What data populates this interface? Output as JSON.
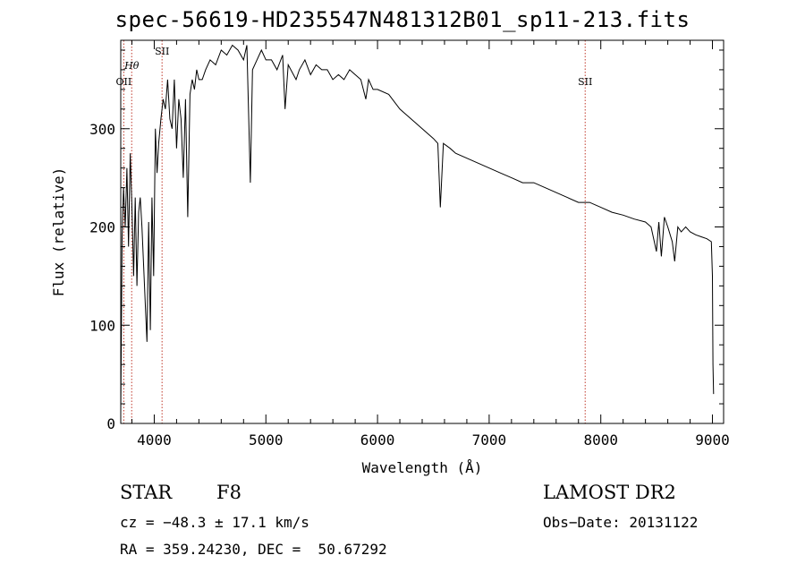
{
  "chart_data": {
    "type": "line",
    "title": "spec-56619-HD235547N481312B01_sp11-213.fits",
    "xlabel": "Wavelength (Å)",
    "ylabel": "Flux (relative)",
    "xlim": [
      3700,
      9100
    ],
    "ylim": [
      0,
      390
    ],
    "x_ticks": [
      4000,
      5000,
      6000,
      7000,
      8000,
      9000
    ],
    "y_ticks": [
      0,
      100,
      200,
      300
    ],
    "grid": false,
    "line_markers": [
      {
        "label": "OII",
        "wavelength": 3727,
        "label_row": "lower"
      },
      {
        "label": "Hθ",
        "wavelength": 3798,
        "label_row": "upper"
      },
      {
        "label": "SII",
        "wavelength": 4070,
        "label_row": "top"
      },
      {
        "label": "SII",
        "wavelength": 7860,
        "label_row": "lower"
      }
    ],
    "series": [
      {
        "color": "#000000",
        "x": [
          3700,
          3712,
          3725,
          3740,
          3755,
          3770,
          3785,
          3800,
          3815,
          3830,
          3845,
          3860,
          3875,
          3890,
          3905,
          3920,
          3935,
          3950,
          3965,
          3980,
          3995,
          4010,
          4025,
          4040,
          4060,
          4080,
          4100,
          4120,
          4140,
          4160,
          4180,
          4200,
          4220,
          4240,
          4260,
          4280,
          4300,
          4320,
          4340,
          4360,
          4380,
          4400,
          4430,
          4460,
          4500,
          4550,
          4600,
          4650,
          4700,
          4750,
          4800,
          4830,
          4861,
          4880,
          4920,
          4960,
          5000,
          5050,
          5100,
          5150,
          5172,
          5200,
          5270,
          5300,
          5350,
          5400,
          5450,
          5500,
          5550,
          5600,
          5650,
          5700,
          5750,
          5800,
          5850,
          5895,
          5920,
          5960,
          6000,
          6100,
          6200,
          6300,
          6400,
          6500,
          6540,
          6563,
          6590,
          6650,
          6700,
          6800,
          6900,
          7000,
          7100,
          7200,
          7300,
          7400,
          7500,
          7600,
          7700,
          7800,
          7900,
          8000,
          8100,
          8200,
          8300,
          8400,
          8450,
          8498,
          8520,
          8542,
          8570,
          8600,
          8640,
          8662,
          8690,
          8720,
          8760,
          8800,
          8850,
          8900,
          8950,
          8990,
          9000,
          9005,
          9010
        ],
        "values": [
          10,
          190,
          240,
          200,
          260,
          180,
          275,
          220,
          150,
          230,
          140,
          215,
          230,
          200,
          160,
          120,
          83,
          205,
          95,
          230,
          150,
          300,
          255,
          285,
          310,
          330,
          320,
          350,
          310,
          300,
          350,
          280,
          330,
          310,
          250,
          330,
          210,
          335,
          350,
          340,
          360,
          350,
          350,
          360,
          370,
          365,
          380,
          375,
          385,
          380,
          370,
          385,
          245,
          360,
          370,
          380,
          370,
          370,
          360,
          375,
          320,
          365,
          350,
          360,
          370,
          355,
          365,
          360,
          360,
          350,
          355,
          350,
          360,
          355,
          350,
          330,
          350,
          340,
          340,
          335,
          320,
          310,
          300,
          290,
          285,
          220,
          285,
          280,
          275,
          270,
          265,
          260,
          255,
          250,
          245,
          245,
          240,
          235,
          230,
          225,
          225,
          220,
          215,
          212,
          208,
          205,
          200,
          175,
          205,
          170,
          210,
          200,
          185,
          165,
          200,
          195,
          200,
          195,
          192,
          190,
          188,
          185,
          150,
          60,
          30
        ]
      }
    ]
  },
  "info": {
    "object_type": "STAR",
    "subclass": "F8",
    "survey": "LAMOST DR2",
    "cz": "cz = −48.3 ± 17.1 km/s",
    "obs_date": "Obs−Date: 20131122",
    "coords": "RA = 359.24230, DEC =  50.67292"
  }
}
